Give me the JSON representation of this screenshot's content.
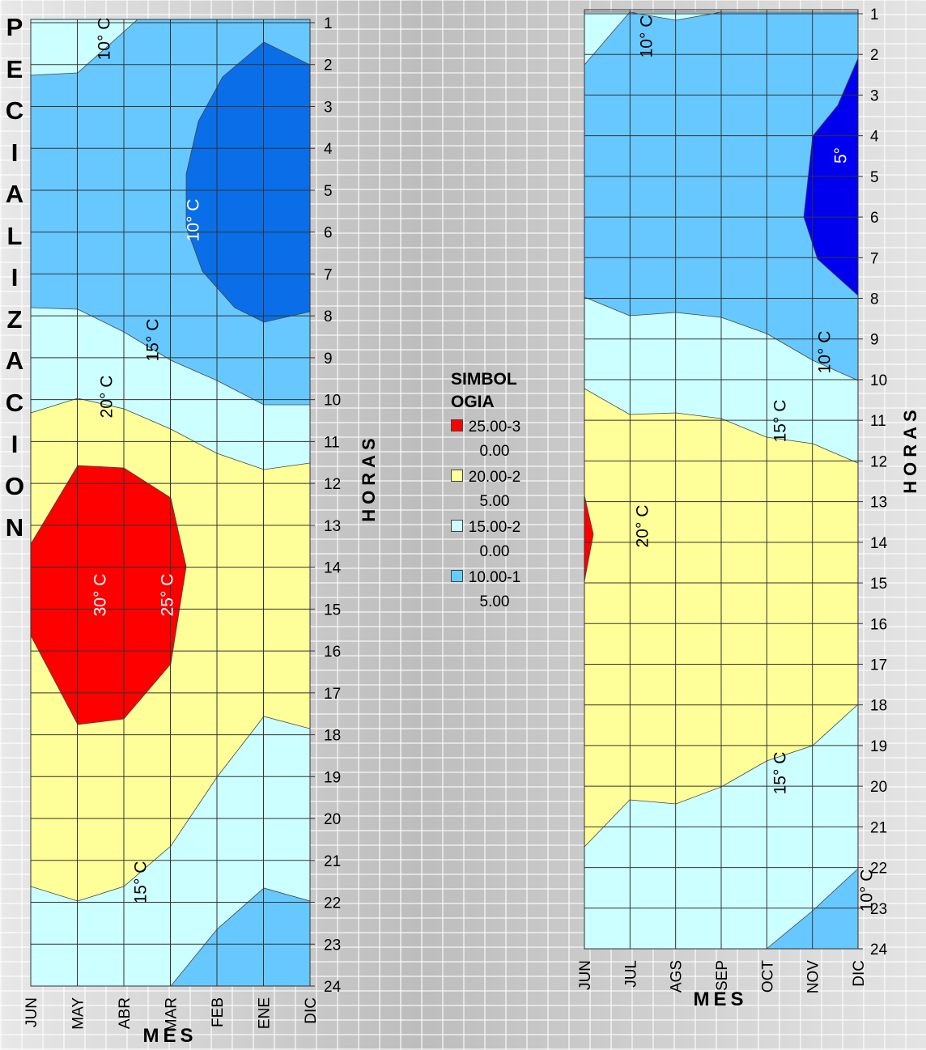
{
  "side_text": "PECIALIZACION",
  "legend": {
    "title": "SIMBOLOGIA",
    "items": [
      {
        "label": "25.00-30.00",
        "color": "#ff0000"
      },
      {
        "label": "20.00-25.00",
        "color": "#ffff99"
      },
      {
        "label": "15.00-20.00",
        "color": "#ccffff"
      },
      {
        "label": "10.00-15.00",
        "color": "#66ccff"
      }
    ]
  },
  "chart_data": [
    {
      "type": "contour",
      "xlabel": "MES",
      "ylabel": "HORAS",
      "categories": [
        "JUN",
        "MAY",
        "ABR",
        "MAR",
        "FEB",
        "ENE",
        "DIC"
      ],
      "ylim": [
        1,
        24
      ],
      "yticks": [
        1,
        2,
        3,
        4,
        5,
        6,
        7,
        8,
        9,
        10,
        11,
        12,
        13,
        14,
        15,
        16,
        17,
        18,
        19,
        20,
        21,
        22,
        23,
        24
      ],
      "grid": true,
      "annotations": [
        "10° C",
        "10° C",
        "15° C",
        "20° C",
        "30° C",
        "25° C",
        "15° C"
      ]
    },
    {
      "type": "contour",
      "xlabel": "MES",
      "ylabel": "HORAS",
      "categories": [
        "JUN",
        "JUL",
        "AGS",
        "SEP",
        "OCT",
        "NOV",
        "DIC"
      ],
      "ylim": [
        1,
        24
      ],
      "yticks": [
        1,
        2,
        3,
        4,
        5,
        6,
        7,
        8,
        9,
        10,
        11,
        12,
        13,
        14,
        15,
        16,
        17,
        18,
        19,
        20,
        21,
        22,
        23,
        24
      ],
      "grid": true,
      "annotations": [
        "10° C",
        "5°",
        "10° C",
        "15° C",
        "20° C",
        "15° C",
        "10° C"
      ]
    }
  ]
}
